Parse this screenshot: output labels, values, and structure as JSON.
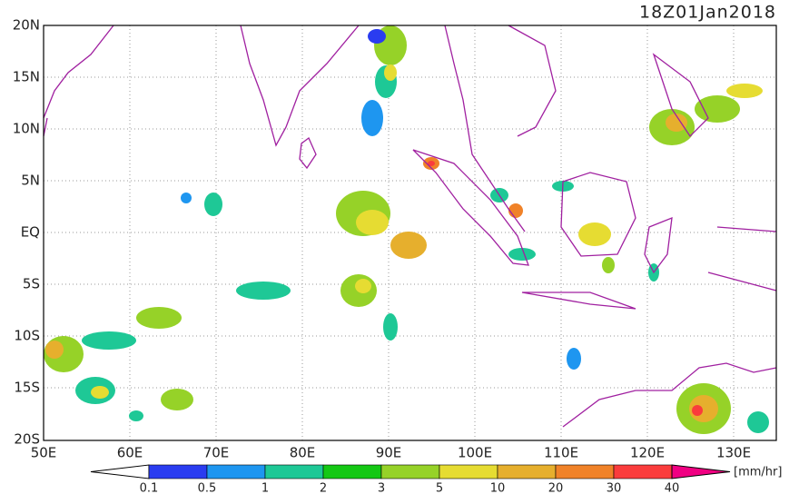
{
  "title": "18Z01Jan2018",
  "map": {
    "lat_labels": [
      "20N",
      "15N",
      "10N",
      "5N",
      "EQ",
      "5S",
      "10S",
      "15S",
      "20S"
    ],
    "lon_labels": [
      "50E",
      "60E",
      "70E",
      "80E",
      "90E",
      "100E",
      "110E",
      "120E",
      "130E"
    ]
  },
  "colorbar": {
    "labels": [
      "0.1",
      "0.5",
      "1",
      "2",
      "3",
      "5",
      "10",
      "20",
      "30",
      "40"
    ],
    "colors": [
      "#ffffff",
      "#2a3cf0",
      "#1e96f0",
      "#1ec896",
      "#14c814",
      "#96d228",
      "#e6dc32",
      "#e6af2d",
      "#f08228",
      "#fa3c3c",
      "#f00082"
    ],
    "unit": "[mm/hr]"
  }
}
